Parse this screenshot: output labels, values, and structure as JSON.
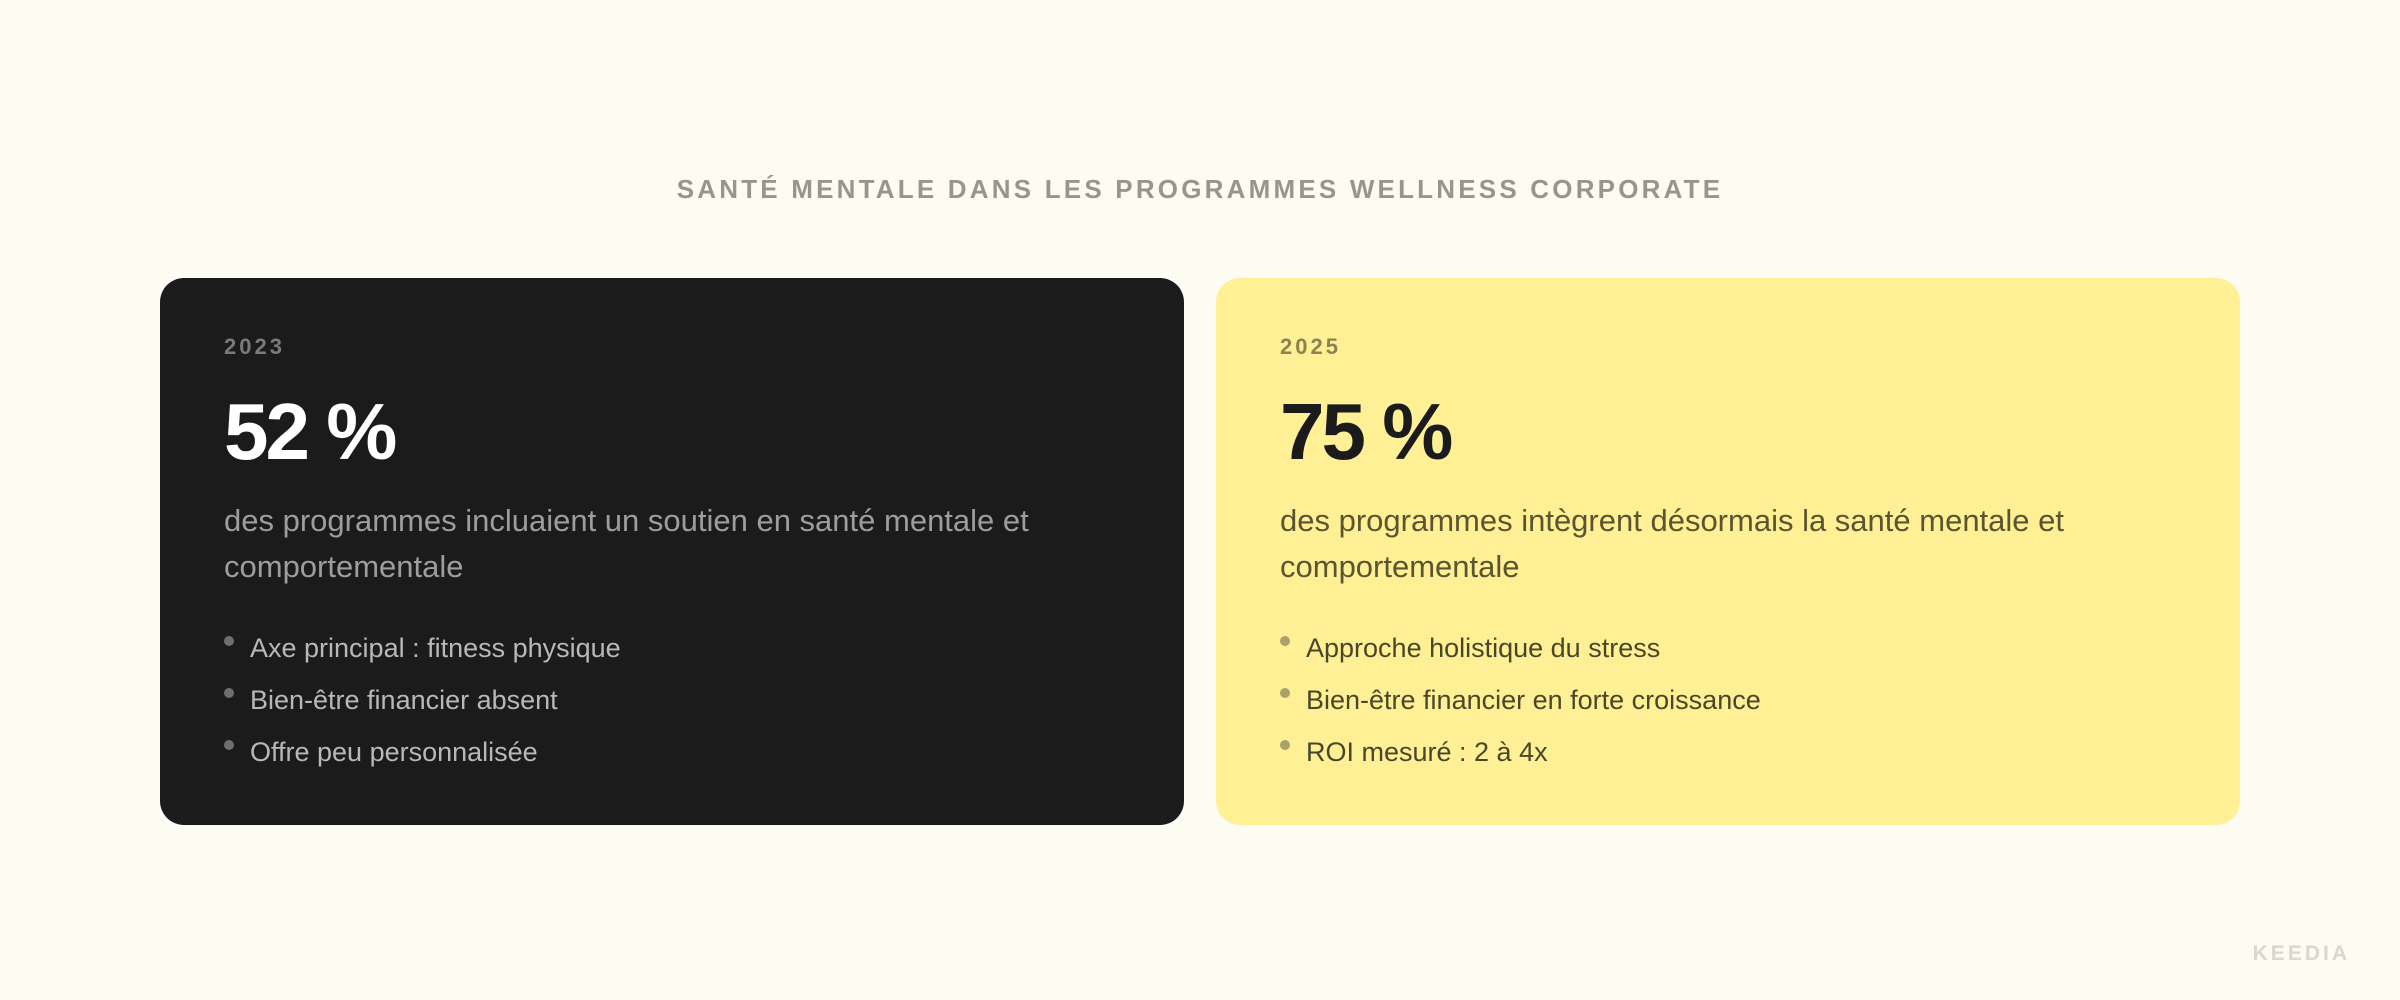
{
  "title": "SANTÉ MENTALE DANS LES PROGRAMMES WELLNESS CORPORATE",
  "cards": [
    {
      "year": "2023",
      "stat": "52 %",
      "description": "des programmes incluaient un soutien en santé mentale et comportementale",
      "bullets": [
        "Axe principal : fitness physique",
        "Bien-être financier absent",
        "Offre peu personnalisée"
      ],
      "background": "#1b1b1b"
    },
    {
      "year": "2025",
      "stat": "75 %",
      "description": "des programmes intègrent désormais la santé mentale et comportementale",
      "bullets": [
        "Approche holistique du stress",
        "Bien-être financier en forte croissance",
        "ROI mesuré : 2 à 4x"
      ],
      "background": "#fff095"
    }
  ],
  "brand": "KEEDIA"
}
